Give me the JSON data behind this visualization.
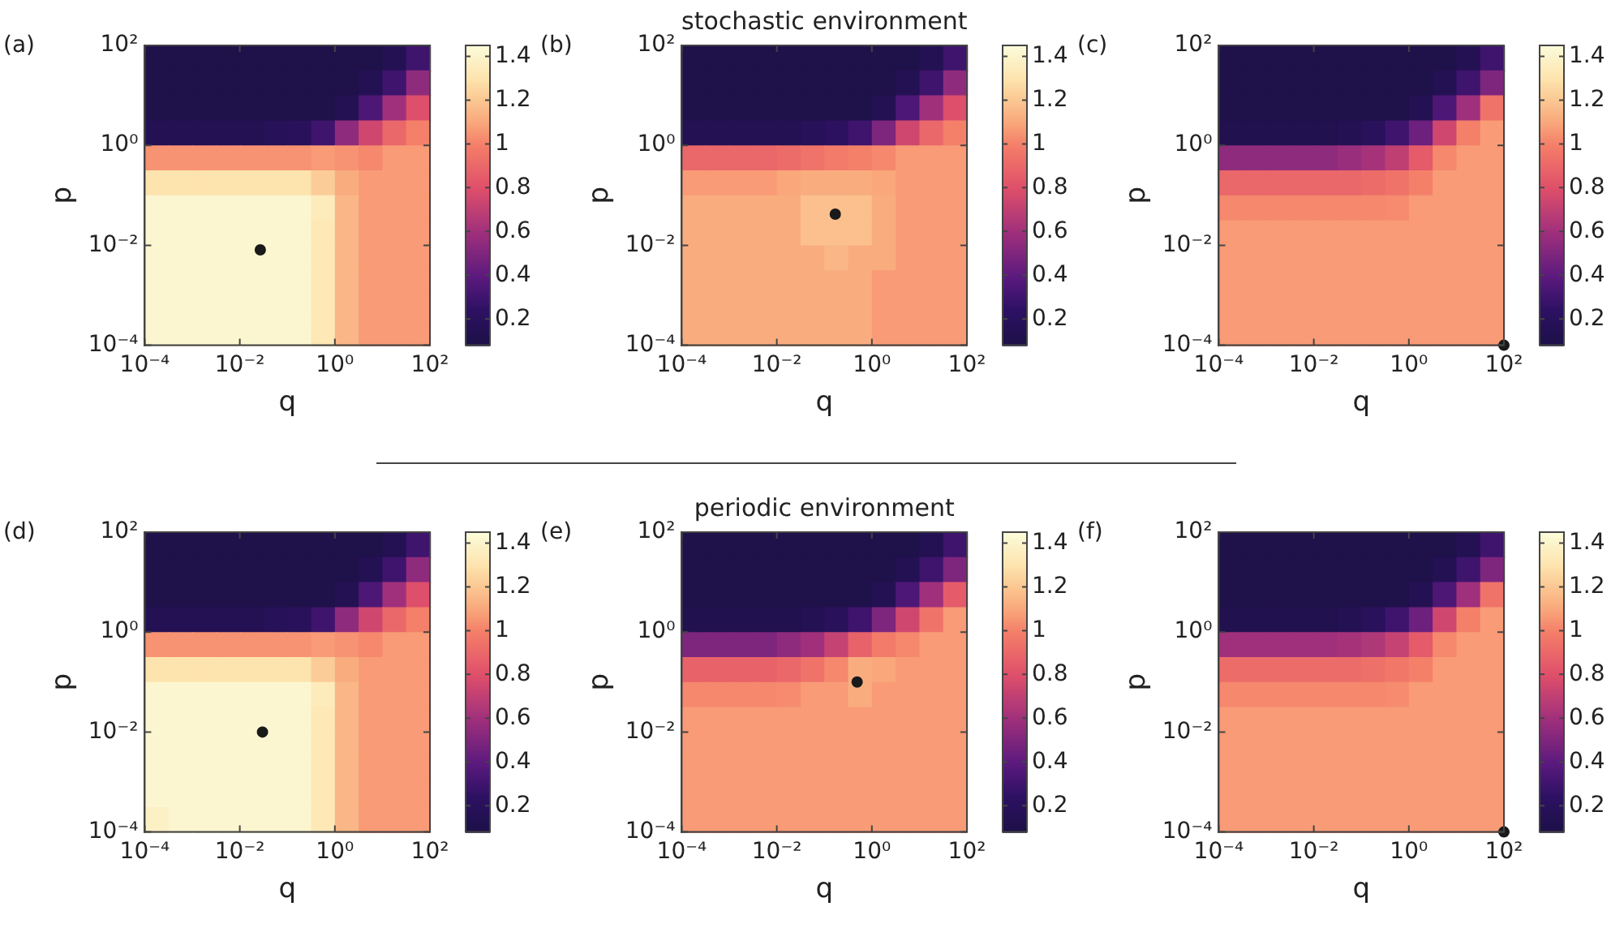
{
  "chart_data": [
    {
      "type": "heatmap",
      "annotations": [
        "(a)"
      ],
      "xlabel": "q",
      "ylabel": "p",
      "log": "xy",
      "x": [
        0.000178,
        0.000562,
        0.00178,
        0.00562,
        0.0178,
        0.0562,
        0.178,
        0.562,
        1.78,
        5.62,
        17.8,
        56.2
      ],
      "y": [
        56.2,
        17.8,
        5.62,
        1.78,
        0.562,
        0.178,
        0.0562,
        0.0178,
        0.00562,
        0.00178,
        0.000562,
        0.000178
      ],
      "xlim": [
        0.0001,
        100
      ],
      "ylim": [
        0.0001,
        100
      ],
      "xticks": [
        {
          "value": 0.0001,
          "label": "10⁻⁴"
        },
        {
          "value": 0.01,
          "label": "10⁻²"
        },
        {
          "value": 1,
          "label": "10⁰"
        },
        {
          "value": 100,
          "label": "10²"
        }
      ],
      "yticks": [
        {
          "value": 0.0001,
          "label": "10⁻⁴"
        },
        {
          "value": 0.01,
          "label": "10⁻²"
        },
        {
          "value": 1,
          "label": "10⁰"
        },
        {
          "value": 100,
          "label": "10²"
        }
      ],
      "clim": [
        0.08,
        1.45
      ],
      "cticks": [
        0.2,
        0.4,
        0.6,
        0.8,
        1,
        1.2,
        1.4
      ],
      "cells": [
        [
          0.1,
          0.1,
          0.1,
          0.1,
          0.1,
          0.1,
          0.1,
          0.1,
          0.1,
          0.1,
          0.15,
          0.3
        ],
        [
          0.1,
          0.1,
          0.1,
          0.1,
          0.1,
          0.1,
          0.1,
          0.1,
          0.1,
          0.15,
          0.3,
          0.55
        ],
        [
          0.1,
          0.1,
          0.1,
          0.1,
          0.1,
          0.1,
          0.1,
          0.1,
          0.15,
          0.35,
          0.6,
          0.8
        ],
        [
          0.15,
          0.15,
          0.15,
          0.15,
          0.15,
          0.18,
          0.2,
          0.3,
          0.55,
          0.75,
          0.9,
          1.0
        ],
        [
          1.05,
          1.05,
          1.05,
          1.05,
          1.05,
          1.05,
          1.05,
          1.07,
          1.05,
          1.02,
          1.07,
          1.07
        ],
        [
          1.3,
          1.3,
          1.3,
          1.3,
          1.3,
          1.3,
          1.3,
          1.22,
          1.12,
          1.07,
          1.07,
          1.07
        ],
        [
          1.42,
          1.42,
          1.42,
          1.42,
          1.42,
          1.42,
          1.42,
          1.35,
          1.15,
          1.07,
          1.07,
          1.07
        ],
        [
          1.42,
          1.42,
          1.42,
          1.42,
          1.42,
          1.42,
          1.42,
          1.33,
          1.15,
          1.07,
          1.07,
          1.07
        ],
        [
          1.42,
          1.42,
          1.42,
          1.42,
          1.42,
          1.42,
          1.42,
          1.33,
          1.15,
          1.07,
          1.07,
          1.07
        ],
        [
          1.42,
          1.42,
          1.42,
          1.42,
          1.42,
          1.42,
          1.42,
          1.33,
          1.15,
          1.07,
          1.07,
          1.07
        ],
        [
          1.42,
          1.42,
          1.42,
          1.42,
          1.42,
          1.42,
          1.42,
          1.33,
          1.15,
          1.07,
          1.07,
          1.07
        ],
        [
          1.42,
          1.42,
          1.42,
          1.42,
          1.42,
          1.42,
          1.42,
          1.33,
          1.15,
          1.07,
          1.07,
          1.07
        ]
      ],
      "series": [
        {
          "type": "scatter",
          "x": [
            0.027
          ],
          "values": [
            0.0081
          ],
          "color": "#1a1a1a"
        }
      ]
    },
    {
      "type": "heatmap",
      "title": "stochastic environment",
      "annotations": [
        "(b)"
      ],
      "xlabel": "q",
      "ylabel": "p",
      "log": "xy",
      "x": [
        0.000178,
        0.000562,
        0.00178,
        0.00562,
        0.0178,
        0.0562,
        0.178,
        0.562,
        1.78,
        5.62,
        17.8,
        56.2
      ],
      "y": [
        56.2,
        17.8,
        5.62,
        1.78,
        0.562,
        0.178,
        0.0562,
        0.0178,
        0.00562,
        0.00178,
        0.000562,
        0.000178
      ],
      "xlim": [
        0.0001,
        100
      ],
      "ylim": [
        0.0001,
        100
      ],
      "xticks": [
        {
          "value": 0.0001,
          "label": "10⁻⁴"
        },
        {
          "value": 0.01,
          "label": "10⁻²"
        },
        {
          "value": 1,
          "label": "10⁰"
        },
        {
          "value": 100,
          "label": "10²"
        }
      ],
      "yticks": [
        {
          "value": 0.0001,
          "label": "10⁻⁴"
        },
        {
          "value": 0.01,
          "label": "10⁻²"
        },
        {
          "value": 1,
          "label": "10⁰"
        },
        {
          "value": 100,
          "label": "10²"
        }
      ],
      "clim": [
        0.08,
        1.45
      ],
      "cticks": [
        0.2,
        0.4,
        0.6,
        0.8,
        1,
        1.2,
        1.4
      ],
      "cells": [
        [
          0.1,
          0.1,
          0.1,
          0.1,
          0.1,
          0.1,
          0.1,
          0.1,
          0.1,
          0.1,
          0.15,
          0.3
        ],
        [
          0.1,
          0.1,
          0.1,
          0.1,
          0.1,
          0.1,
          0.1,
          0.1,
          0.1,
          0.15,
          0.3,
          0.55
        ],
        [
          0.1,
          0.1,
          0.1,
          0.1,
          0.1,
          0.1,
          0.1,
          0.1,
          0.15,
          0.35,
          0.6,
          0.8
        ],
        [
          0.15,
          0.15,
          0.15,
          0.15,
          0.15,
          0.18,
          0.22,
          0.3,
          0.5,
          0.75,
          0.9,
          1.0
        ],
        [
          0.9,
          0.9,
          0.9,
          0.9,
          0.92,
          0.95,
          0.98,
          1.0,
          1.02,
          1.07,
          1.07,
          1.07
        ],
        [
          1.07,
          1.07,
          1.07,
          1.07,
          1.1,
          1.12,
          1.12,
          1.12,
          1.1,
          1.07,
          1.07,
          1.07
        ],
        [
          1.12,
          1.12,
          1.12,
          1.12,
          1.12,
          1.18,
          1.18,
          1.18,
          1.12,
          1.07,
          1.07,
          1.07
        ],
        [
          1.12,
          1.12,
          1.12,
          1.12,
          1.12,
          1.18,
          1.18,
          1.18,
          1.12,
          1.07,
          1.07,
          1.07
        ],
        [
          1.12,
          1.12,
          1.12,
          1.12,
          1.12,
          1.12,
          1.15,
          1.12,
          1.12,
          1.07,
          1.07,
          1.07
        ],
        [
          1.12,
          1.12,
          1.12,
          1.12,
          1.12,
          1.12,
          1.12,
          1.12,
          1.07,
          1.07,
          1.07,
          1.07
        ],
        [
          1.12,
          1.12,
          1.12,
          1.12,
          1.12,
          1.12,
          1.12,
          1.12,
          1.07,
          1.07,
          1.07,
          1.07
        ],
        [
          1.12,
          1.12,
          1.12,
          1.12,
          1.12,
          1.12,
          1.12,
          1.12,
          1.07,
          1.07,
          1.07,
          1.07
        ]
      ],
      "series": [
        {
          "type": "scatter",
          "x": [
            0.17
          ],
          "values": [
            0.042
          ],
          "color": "#1a1a1a"
        }
      ]
    },
    {
      "type": "heatmap",
      "annotations": [
        "(c)"
      ],
      "xlabel": "q",
      "ylabel": "p",
      "log": "xy",
      "x": [
        0.000178,
        0.000562,
        0.00178,
        0.00562,
        0.0178,
        0.0562,
        0.178,
        0.562,
        1.78,
        5.62,
        17.8,
        56.2
      ],
      "y": [
        56.2,
        17.8,
        5.62,
        1.78,
        0.562,
        0.178,
        0.0562,
        0.0178,
        0.00562,
        0.00178,
        0.000562,
        0.000178
      ],
      "xlim": [
        0.0001,
        100
      ],
      "ylim": [
        0.0001,
        100
      ],
      "xticks": [
        {
          "value": 0.0001,
          "label": "10⁻⁴"
        },
        {
          "value": 0.01,
          "label": "10⁻²"
        },
        {
          "value": 1,
          "label": "10⁰"
        },
        {
          "value": 100,
          "label": "10²"
        }
      ],
      "yticks": [
        {
          "value": 0.0001,
          "label": "10⁻⁴"
        },
        {
          "value": 0.01,
          "label": "10⁻²"
        },
        {
          "value": 1,
          "label": "10⁰"
        },
        {
          "value": 100,
          "label": "10²"
        }
      ],
      "clim": [
        0.08,
        1.45
      ],
      "cticks": [
        0.2,
        0.4,
        0.6,
        0.8,
        1,
        1.2,
        1.4
      ],
      "cells": [
        [
          0.1,
          0.1,
          0.1,
          0.1,
          0.1,
          0.1,
          0.1,
          0.1,
          0.1,
          0.1,
          0.15,
          0.3
        ],
        [
          0.1,
          0.1,
          0.1,
          0.1,
          0.1,
          0.1,
          0.1,
          0.1,
          0.1,
          0.15,
          0.3,
          0.5
        ],
        [
          0.1,
          0.1,
          0.1,
          0.1,
          0.1,
          0.1,
          0.1,
          0.1,
          0.15,
          0.35,
          0.6,
          0.95
        ],
        [
          0.12,
          0.12,
          0.12,
          0.12,
          0.12,
          0.15,
          0.2,
          0.3,
          0.45,
          0.75,
          1.0,
          1.07
        ],
        [
          0.55,
          0.55,
          0.55,
          0.55,
          0.55,
          0.58,
          0.62,
          0.7,
          0.85,
          1.02,
          1.07,
          1.07
        ],
        [
          0.9,
          0.9,
          0.9,
          0.9,
          0.9,
          0.9,
          0.92,
          0.95,
          1.0,
          1.07,
          1.07,
          1.07
        ],
        [
          1.02,
          1.02,
          1.02,
          1.02,
          1.02,
          1.02,
          1.02,
          1.03,
          1.07,
          1.07,
          1.07,
          1.07
        ],
        [
          1.07,
          1.07,
          1.07,
          1.07,
          1.07,
          1.07,
          1.07,
          1.07,
          1.07,
          1.07,
          1.07,
          1.07
        ],
        [
          1.07,
          1.07,
          1.07,
          1.07,
          1.07,
          1.07,
          1.07,
          1.07,
          1.07,
          1.07,
          1.07,
          1.07
        ],
        [
          1.07,
          1.07,
          1.07,
          1.07,
          1.07,
          1.07,
          1.07,
          1.07,
          1.07,
          1.07,
          1.07,
          1.07
        ],
        [
          1.07,
          1.07,
          1.07,
          1.07,
          1.07,
          1.07,
          1.07,
          1.07,
          1.07,
          1.07,
          1.07,
          1.07
        ],
        [
          1.07,
          1.07,
          1.07,
          1.07,
          1.07,
          1.07,
          1.07,
          1.07,
          1.07,
          1.07,
          1.07,
          1.07
        ]
      ],
      "series": [
        {
          "type": "scatter",
          "x": [
            100
          ],
          "values": [
            0.0001
          ],
          "color": "#1a1a1a"
        }
      ]
    },
    {
      "type": "heatmap",
      "annotations": [
        "(d)"
      ],
      "xlabel": "q",
      "ylabel": "p",
      "log": "xy",
      "x": [
        0.000178,
        0.000562,
        0.00178,
        0.00562,
        0.0178,
        0.0562,
        0.178,
        0.562,
        1.78,
        5.62,
        17.8,
        56.2
      ],
      "y": [
        56.2,
        17.8,
        5.62,
        1.78,
        0.562,
        0.178,
        0.0562,
        0.0178,
        0.00562,
        0.00178,
        0.000562,
        0.000178
      ],
      "xlim": [
        0.0001,
        100
      ],
      "ylim": [
        0.0001,
        100
      ],
      "xticks": [
        {
          "value": 0.0001,
          "label": "10⁻⁴"
        },
        {
          "value": 0.01,
          "label": "10⁻²"
        },
        {
          "value": 1,
          "label": "10⁰"
        },
        {
          "value": 100,
          "label": "10²"
        }
      ],
      "yticks": [
        {
          "value": 0.0001,
          "label": "10⁻⁴"
        },
        {
          "value": 0.01,
          "label": "10⁻²"
        },
        {
          "value": 1,
          "label": "10⁰"
        },
        {
          "value": 100,
          "label": "10²"
        }
      ],
      "clim": [
        0.08,
        1.45
      ],
      "cticks": [
        0.2,
        0.4,
        0.6,
        0.8,
        1,
        1.2,
        1.4
      ],
      "cells": [
        [
          0.1,
          0.1,
          0.1,
          0.1,
          0.1,
          0.1,
          0.1,
          0.1,
          0.1,
          0.1,
          0.15,
          0.3
        ],
        [
          0.1,
          0.1,
          0.1,
          0.1,
          0.1,
          0.1,
          0.1,
          0.1,
          0.1,
          0.15,
          0.3,
          0.55
        ],
        [
          0.1,
          0.1,
          0.1,
          0.1,
          0.1,
          0.1,
          0.1,
          0.1,
          0.15,
          0.35,
          0.6,
          0.8
        ],
        [
          0.15,
          0.15,
          0.15,
          0.15,
          0.15,
          0.18,
          0.2,
          0.3,
          0.55,
          0.75,
          0.9,
          1.0
        ],
        [
          1.05,
          1.05,
          1.05,
          1.05,
          1.05,
          1.05,
          1.05,
          1.07,
          1.05,
          1.02,
          1.07,
          1.07
        ],
        [
          1.3,
          1.3,
          1.3,
          1.3,
          1.3,
          1.3,
          1.3,
          1.22,
          1.12,
          1.07,
          1.07,
          1.07
        ],
        [
          1.42,
          1.42,
          1.42,
          1.42,
          1.42,
          1.42,
          1.42,
          1.35,
          1.15,
          1.07,
          1.07,
          1.07
        ],
        [
          1.42,
          1.42,
          1.42,
          1.42,
          1.42,
          1.42,
          1.42,
          1.33,
          1.15,
          1.07,
          1.07,
          1.07
        ],
        [
          1.42,
          1.42,
          1.42,
          1.42,
          1.42,
          1.42,
          1.42,
          1.33,
          1.15,
          1.07,
          1.07,
          1.07
        ],
        [
          1.42,
          1.42,
          1.42,
          1.42,
          1.42,
          1.42,
          1.42,
          1.33,
          1.15,
          1.07,
          1.07,
          1.07
        ],
        [
          1.42,
          1.42,
          1.42,
          1.42,
          1.42,
          1.42,
          1.42,
          1.33,
          1.15,
          1.07,
          1.07,
          1.07
        ],
        [
          1.38,
          1.42,
          1.42,
          1.42,
          1.42,
          1.42,
          1.42,
          1.33,
          1.15,
          1.07,
          1.07,
          1.07
        ]
      ],
      "series": [
        {
          "type": "scatter",
          "x": [
            0.03
          ],
          "values": [
            0.01
          ],
          "color": "#1a1a1a"
        }
      ]
    },
    {
      "type": "heatmap",
      "title": "periodic environment",
      "annotations": [
        "(e)"
      ],
      "xlabel": "q",
      "ylabel": "p",
      "log": "xy",
      "x": [
        0.000178,
        0.000562,
        0.00178,
        0.00562,
        0.0178,
        0.0562,
        0.178,
        0.562,
        1.78,
        5.62,
        17.8,
        56.2
      ],
      "y": [
        56.2,
        17.8,
        5.62,
        1.78,
        0.562,
        0.178,
        0.0562,
        0.0178,
        0.00562,
        0.00178,
        0.000562,
        0.000178
      ],
      "xlim": [
        0.0001,
        100
      ],
      "ylim": [
        0.0001,
        100
      ],
      "xticks": [
        {
          "value": 0.0001,
          "label": "10⁻⁴"
        },
        {
          "value": 0.01,
          "label": "10⁻²"
        },
        {
          "value": 1,
          "label": "10⁰"
        },
        {
          "value": 100,
          "label": "10²"
        }
      ],
      "yticks": [
        {
          "value": 0.0001,
          "label": "10⁻⁴"
        },
        {
          "value": 0.01,
          "label": "10⁻²"
        },
        {
          "value": 1,
          "label": "10⁰"
        },
        {
          "value": 100,
          "label": "10²"
        }
      ],
      "clim": [
        0.08,
        1.45
      ],
      "cticks": [
        0.2,
        0.4,
        0.6,
        0.8,
        1,
        1.2,
        1.4
      ],
      "cells": [
        [
          0.1,
          0.1,
          0.1,
          0.1,
          0.1,
          0.1,
          0.1,
          0.1,
          0.1,
          0.1,
          0.15,
          0.3
        ],
        [
          0.1,
          0.1,
          0.1,
          0.1,
          0.1,
          0.1,
          0.1,
          0.1,
          0.1,
          0.15,
          0.3,
          0.5
        ],
        [
          0.1,
          0.1,
          0.1,
          0.1,
          0.1,
          0.1,
          0.1,
          0.1,
          0.15,
          0.35,
          0.6,
          0.85
        ],
        [
          0.12,
          0.12,
          0.12,
          0.12,
          0.12,
          0.15,
          0.2,
          0.3,
          0.5,
          0.75,
          0.95,
          1.07
        ],
        [
          0.5,
          0.5,
          0.5,
          0.5,
          0.55,
          0.6,
          0.72,
          0.88,
          0.98,
          1.02,
          1.07,
          1.07
        ],
        [
          0.88,
          0.88,
          0.88,
          0.88,
          0.9,
          0.95,
          1.02,
          1.12,
          1.1,
          1.07,
          1.07,
          1.07
        ],
        [
          1.02,
          1.02,
          1.02,
          1.02,
          1.03,
          1.07,
          1.07,
          1.12,
          1.07,
          1.07,
          1.07,
          1.07
        ],
        [
          1.07,
          1.07,
          1.07,
          1.07,
          1.07,
          1.07,
          1.07,
          1.07,
          1.07,
          1.07,
          1.07,
          1.07
        ],
        [
          1.07,
          1.07,
          1.07,
          1.07,
          1.07,
          1.07,
          1.07,
          1.07,
          1.07,
          1.07,
          1.07,
          1.07
        ],
        [
          1.07,
          1.07,
          1.07,
          1.07,
          1.07,
          1.07,
          1.07,
          1.07,
          1.07,
          1.07,
          1.07,
          1.07
        ],
        [
          1.07,
          1.07,
          1.07,
          1.07,
          1.07,
          1.07,
          1.07,
          1.07,
          1.07,
          1.07,
          1.07,
          1.07
        ],
        [
          1.07,
          1.07,
          1.07,
          1.07,
          1.07,
          1.07,
          1.07,
          1.07,
          1.07,
          1.07,
          1.07,
          1.07
        ]
      ],
      "series": [
        {
          "type": "scatter",
          "x": [
            0.49
          ],
          "values": [
            0.1
          ],
          "color": "#1a1a1a"
        }
      ]
    },
    {
      "type": "heatmap",
      "annotations": [
        "(f)"
      ],
      "xlabel": "q",
      "ylabel": "p",
      "log": "xy",
      "x": [
        0.000178,
        0.000562,
        0.00178,
        0.00562,
        0.0178,
        0.0562,
        0.178,
        0.562,
        1.78,
        5.62,
        17.8,
        56.2
      ],
      "y": [
        56.2,
        17.8,
        5.62,
        1.78,
        0.562,
        0.178,
        0.0562,
        0.0178,
        0.00562,
        0.00178,
        0.000562,
        0.000178
      ],
      "xlim": [
        0.0001,
        100
      ],
      "ylim": [
        0.0001,
        100
      ],
      "xticks": [
        {
          "value": 0.0001,
          "label": "10⁻⁴"
        },
        {
          "value": 0.01,
          "label": "10⁻²"
        },
        {
          "value": 1,
          "label": "10⁰"
        },
        {
          "value": 100,
          "label": "10²"
        }
      ],
      "yticks": [
        {
          "value": 0.0001,
          "label": "10⁻⁴"
        },
        {
          "value": 0.01,
          "label": "10⁻²"
        },
        {
          "value": 1,
          "label": "10⁰"
        },
        {
          "value": 100,
          "label": "10²"
        }
      ],
      "clim": [
        0.08,
        1.45
      ],
      "cticks": [
        0.2,
        0.4,
        0.6,
        0.8,
        1,
        1.2,
        1.4
      ],
      "cells": [
        [
          0.1,
          0.1,
          0.1,
          0.1,
          0.1,
          0.1,
          0.1,
          0.1,
          0.1,
          0.1,
          0.15,
          0.3
        ],
        [
          0.1,
          0.1,
          0.1,
          0.1,
          0.1,
          0.1,
          0.1,
          0.1,
          0.1,
          0.15,
          0.3,
          0.5
        ],
        [
          0.1,
          0.1,
          0.1,
          0.1,
          0.1,
          0.1,
          0.1,
          0.1,
          0.15,
          0.35,
          0.6,
          0.95
        ],
        [
          0.12,
          0.12,
          0.12,
          0.12,
          0.12,
          0.15,
          0.2,
          0.3,
          0.45,
          0.75,
          1.0,
          1.07
        ],
        [
          0.6,
          0.6,
          0.6,
          0.6,
          0.6,
          0.62,
          0.65,
          0.72,
          0.85,
          1.02,
          1.07,
          1.07
        ],
        [
          0.92,
          0.92,
          0.92,
          0.92,
          0.92,
          0.92,
          0.94,
          0.97,
          1.0,
          1.07,
          1.07,
          1.07
        ],
        [
          1.02,
          1.02,
          1.02,
          1.02,
          1.02,
          1.02,
          1.02,
          1.03,
          1.07,
          1.07,
          1.07,
          1.07
        ],
        [
          1.07,
          1.07,
          1.07,
          1.07,
          1.07,
          1.07,
          1.07,
          1.07,
          1.07,
          1.07,
          1.07,
          1.07
        ],
        [
          1.07,
          1.07,
          1.07,
          1.07,
          1.07,
          1.07,
          1.07,
          1.07,
          1.07,
          1.07,
          1.07,
          1.07
        ],
        [
          1.07,
          1.07,
          1.07,
          1.07,
          1.07,
          1.07,
          1.07,
          1.07,
          1.07,
          1.07,
          1.07,
          1.07
        ],
        [
          1.07,
          1.07,
          1.07,
          1.07,
          1.07,
          1.07,
          1.07,
          1.07,
          1.07,
          1.07,
          1.07,
          1.07
        ],
        [
          1.07,
          1.07,
          1.07,
          1.07,
          1.07,
          1.07,
          1.07,
          1.07,
          1.07,
          1.07,
          1.07,
          1.07
        ]
      ],
      "series": [
        {
          "type": "scatter",
          "x": [
            100
          ],
          "values": [
            0.0001
          ],
          "color": "#1a1a1a"
        }
      ]
    }
  ]
}
